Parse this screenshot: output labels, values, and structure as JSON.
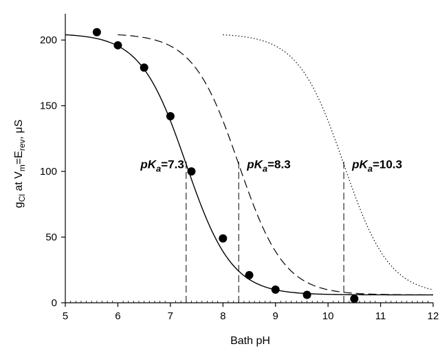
{
  "chart_data": {
    "type": "scatter",
    "xlabel": "Bath pH",
    "ylabel": {
      "base": "g",
      "base_sub": "Cl",
      "middle": " at V",
      "middle_sub": "m",
      "eq": "=E",
      "eq_sub": "rev",
      "tail": ", μS"
    },
    "xlim": [
      5,
      12
    ],
    "ylim": [
      0,
      220
    ],
    "x_ticks": [
      "5",
      "6",
      "7",
      "8",
      "9",
      "10",
      "11",
      "12"
    ],
    "y_ticks": [
      "0",
      "50",
      "100",
      "150",
      "200"
    ],
    "grid": false,
    "points": {
      "x": [
        5.6,
        6.0,
        6.5,
        7.0,
        7.4,
        8.0,
        8.5,
        9.0,
        9.6,
        10.5
      ],
      "y": [
        206,
        196,
        179,
        142,
        100,
        49,
        21,
        10,
        6,
        3
      ]
    },
    "curves": [
      {
        "style": "solid",
        "pKa": 7.3,
        "top": 205,
        "bottom": 6,
        "slope": 1.0,
        "x_range": [
          5.0,
          12.0
        ]
      },
      {
        "style": "dashed",
        "pKa": 8.3,
        "top": 205,
        "bottom": 6,
        "slope": 1.0,
        "x_range": [
          6.0,
          12.0
        ]
      },
      {
        "style": "dotted",
        "pKa": 10.3,
        "top": 205,
        "bottom": 6,
        "slope": 1.0,
        "x_range": [
          8.0,
          12.0
        ]
      }
    ],
    "annotations": [
      {
        "prefix": "pK",
        "sub": "a",
        "value": "=7.3",
        "pKa": 7.3
      },
      {
        "prefix": "pK",
        "sub": "a",
        "value": "=8.3",
        "pKa": 8.3
      },
      {
        "prefix": "pK",
        "sub": "a",
        "value": "=10.3",
        "pKa": 10.3
      }
    ]
  }
}
